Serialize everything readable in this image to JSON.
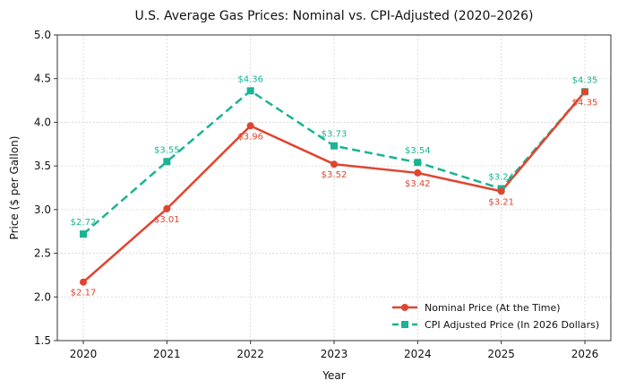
{
  "chart_data": {
    "type": "line",
    "title": "U.S. Average Gas Prices: Nominal vs. CPI-Adjusted (2020–2026)",
    "xlabel": "Year",
    "ylabel": "Price ($ per Gallon)",
    "x": [
      "2020",
      "2021",
      "2022",
      "2023",
      "2024",
      "2025",
      "2026"
    ],
    "ylim": [
      1.5,
      5.0
    ],
    "yticks": [
      "1.5",
      "2.0",
      "2.5",
      "3.0",
      "3.5",
      "4.0",
      "4.5",
      "5.0"
    ],
    "grid": true,
    "legend_position": "bottom-right",
    "series": [
      {
        "name": "Nominal Price (At the Time)",
        "values": [
          2.17,
          3.01,
          3.96,
          3.52,
          3.42,
          3.21,
          4.35
        ],
        "labels": [
          "$2.17",
          "$3.01",
          "$3.96",
          "$3.52",
          "$3.42",
          "$3.21",
          "$4.35"
        ],
        "color": "#e0442f",
        "style": "solid",
        "marker": "circle"
      },
      {
        "name": "CPI Adjusted Price (In 2026 Dollars)",
        "values": [
          2.72,
          3.55,
          4.36,
          3.73,
          3.54,
          3.24,
          4.35
        ],
        "labels": [
          "$2.72",
          "$3.55",
          "$4.36",
          "$3.73",
          "$3.54",
          "$3.24",
          "$4.35"
        ],
        "color": "#1ab394",
        "style": "dashed",
        "marker": "square"
      }
    ]
  }
}
